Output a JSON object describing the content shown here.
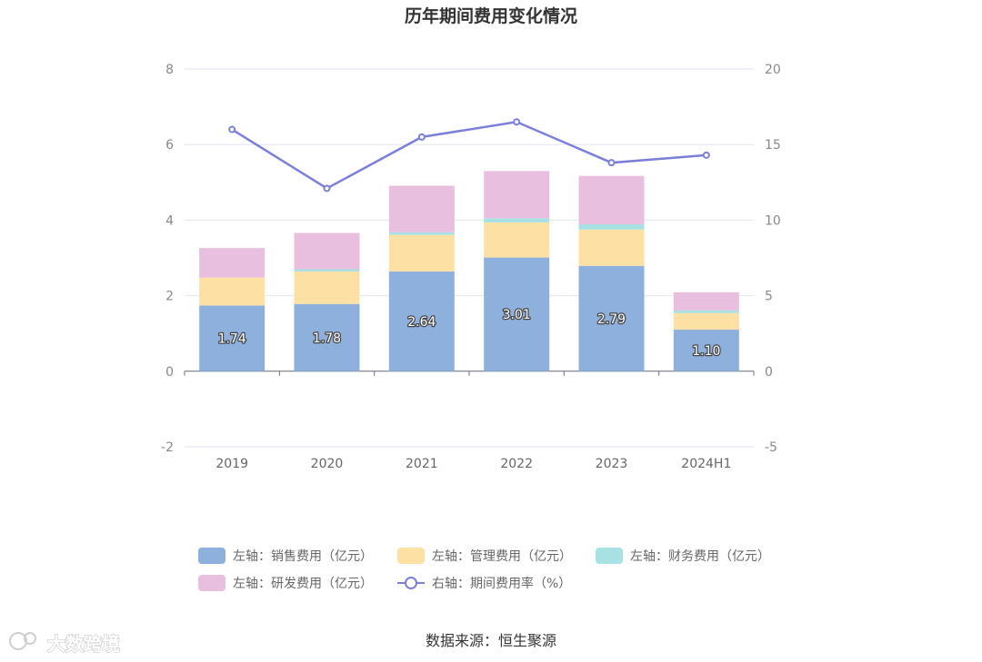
{
  "chart_data": {
    "type": "bar",
    "title": "历年期间费用变化情况",
    "categories": [
      "2019",
      "2020",
      "2021",
      "2022",
      "2023",
      "2024H1"
    ],
    "left_axis": {
      "ylim": [
        -2,
        8
      ],
      "ticks": [
        "-2",
        "0",
        "2",
        "4",
        "6",
        "8"
      ]
    },
    "right_axis": {
      "ylim": [
        -5,
        20
      ],
      "ticks": [
        "-5",
        "0",
        "5",
        "10",
        "15",
        "20"
      ]
    },
    "series": [
      {
        "name": "左轴：销售费用（亿元）",
        "axis": "left",
        "type": "bar",
        "stack": "total",
        "color": "#8eb0dc",
        "values": [
          1.74,
          1.78,
          2.64,
          3.01,
          2.79,
          1.1
        ],
        "labels": [
          "1.74",
          "1.78",
          "2.64",
          "3.01",
          "2.79",
          "1.10"
        ]
      },
      {
        "name": "左轴：管理费用（亿元）",
        "axis": "left",
        "type": "bar",
        "stack": "total",
        "color": "#fde0a4",
        "values": [
          0.74,
          0.86,
          0.97,
          0.93,
          0.96,
          0.44
        ]
      },
      {
        "name": "左轴：财务费用（亿元）",
        "axis": "left",
        "type": "bar",
        "stack": "total",
        "color": "#a8e1e3",
        "values": [
          0.0,
          0.06,
          0.07,
          0.11,
          0.14,
          0.07
        ]
      },
      {
        "name": "左轴：研发费用（亿元）",
        "axis": "left",
        "type": "bar",
        "stack": "total",
        "color": "#e9bfdf",
        "values": [
          0.78,
          0.96,
          1.23,
          1.25,
          1.28,
          0.48
        ]
      },
      {
        "name": "右轴：期间费用率（%）",
        "axis": "right",
        "type": "line",
        "color": "#7b7fd9",
        "values": [
          16.0,
          12.1,
          15.5,
          16.5,
          13.8,
          14.3
        ]
      }
    ],
    "grid": true,
    "legend_position": "bottom"
  },
  "source": "数据来源：恒生聚源",
  "watermark": "大数跨境"
}
